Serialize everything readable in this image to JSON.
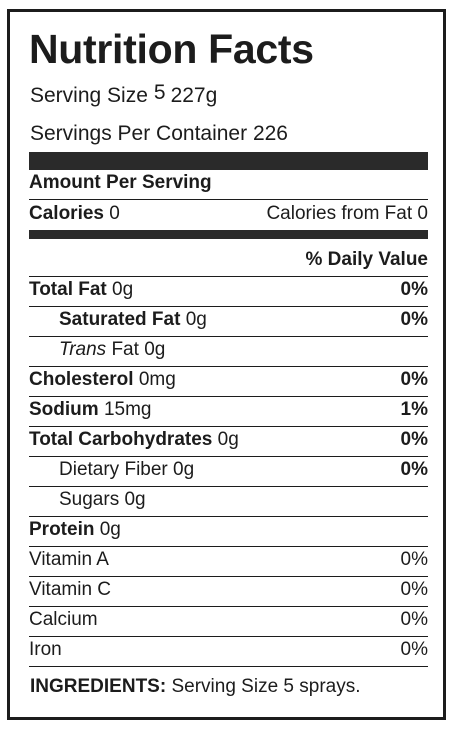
{
  "title": "Nutrition Facts",
  "serving_size": {
    "label": "Serving Size",
    "marker": "5",
    "value": "227g"
  },
  "servings_per_container": {
    "label": "Servings Per Container",
    "value": "226"
  },
  "amount_per_serving": "Amount Per Serving",
  "calories": {
    "label": "Calories",
    "value": "0",
    "from_fat_label": "Calories from Fat",
    "from_fat_value": "0"
  },
  "daily_value_header": "% Daily Value",
  "nutrients": [
    {
      "name": "Total Fat",
      "amount": "0g",
      "dv": "0%"
    },
    {
      "name": "Saturated Fat",
      "amount": "0g",
      "dv": "0%"
    },
    {
      "name_italic": "Trans",
      "name": "Fat",
      "amount": "0g"
    },
    {
      "name": "Cholesterol",
      "amount": "0mg",
      "dv": "0%"
    },
    {
      "name": "Sodium",
      "amount": "15mg",
      "dv": "1%"
    },
    {
      "name": "Total Carbohydrates",
      "amount": "0g",
      "dv": "0%"
    },
    {
      "name": "Dietary Fiber",
      "amount": "0g",
      "dv": "0%"
    },
    {
      "name": "Sugars",
      "amount": "0g"
    },
    {
      "name": "Protein",
      "amount": "0g"
    }
  ],
  "vitamins": [
    {
      "name": "Vitamin A",
      "dv": "0%"
    },
    {
      "name": "Vitamin C",
      "dv": "0%"
    },
    {
      "name": "Calcium",
      "dv": "0%"
    },
    {
      "name": "Iron",
      "dv": "0%"
    }
  ],
  "ingredients": {
    "label": "INGREDIENTS:",
    "text": "Serving Size 5 sprays."
  }
}
